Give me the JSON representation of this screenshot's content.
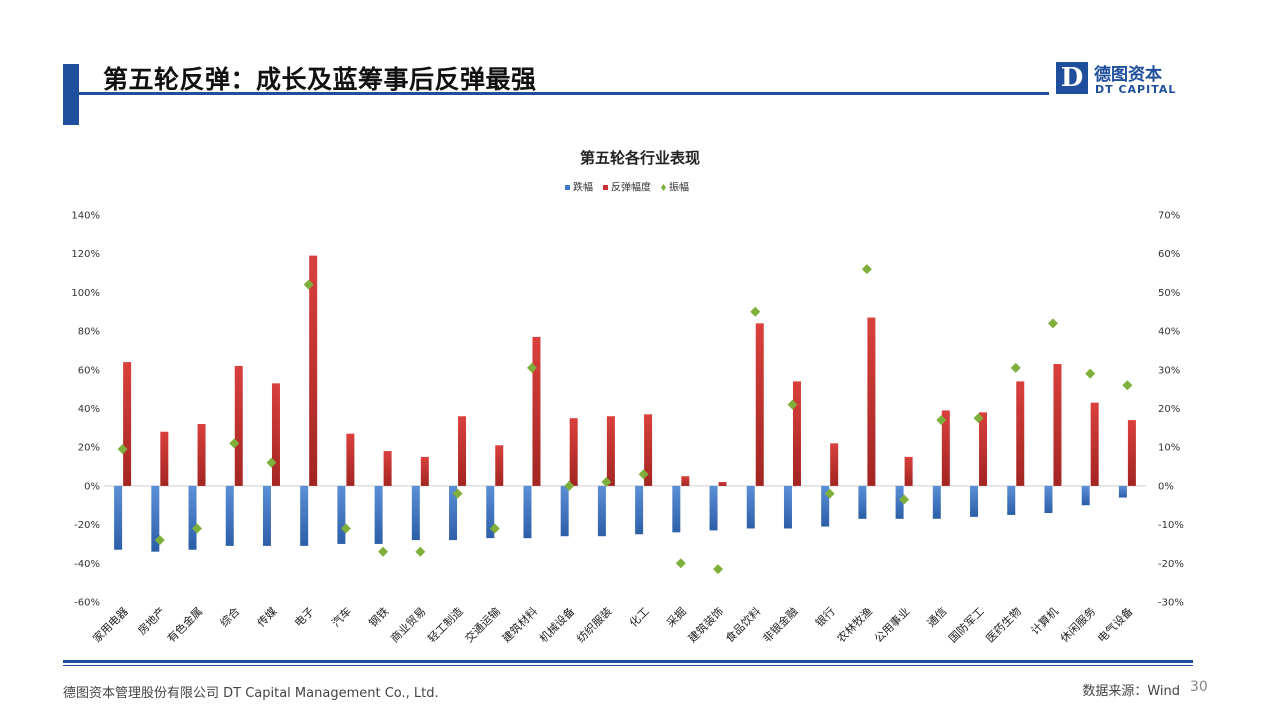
{
  "header": {
    "title": "第五轮反弹：成长及蓝筹事后反弹最强"
  },
  "logo": {
    "mark": "D",
    "name_cn": "德图资本",
    "name_en": "DT CAPITAL"
  },
  "footer": {
    "company": "德图资本管理股份有限公司  DT Capital Management Co., Ltd.",
    "source": "数据来源：Wind",
    "page": "30"
  },
  "colors": {
    "brand": "#1e4e9c",
    "fall": "#3f78c7",
    "rebound": "#c8312f",
    "amplitude": "#7faf3b"
  },
  "chart_data": {
    "type": "bar",
    "title": "第五轮各行业表现",
    "legend": [
      "跌幅",
      "反弹幅度",
      "振幅"
    ],
    "legend_position": "top",
    "categories": [
      "家用电器",
      "房地产",
      "有色金属",
      "综合",
      "传媒",
      "电子",
      "汽车",
      "钢铁",
      "商业贸易",
      "轻工制造",
      "交通运输",
      "建筑材料",
      "机械设备",
      "纺织服装",
      "化工",
      "采掘",
      "建筑装饰",
      "食品饮料",
      "非银金融",
      "银行",
      "农林牧渔",
      "公用事业",
      "通信",
      "国防军工",
      "医药生物",
      "计算机",
      "休闲服务",
      "电气设备"
    ],
    "y_left": {
      "ylim": [
        -60,
        140
      ],
      "ticks": [
        "140%",
        "120%",
        "100%",
        "80%",
        "60%",
        "40%",
        "20%",
        "0%",
        "-20%",
        "-40%",
        "-60%"
      ]
    },
    "y_right": {
      "ylim": [
        -30,
        70
      ],
      "ticks": [
        "70%",
        "60%",
        "50%",
        "40%",
        "30%",
        "20%",
        "10%",
        "0%",
        "-10%",
        "-20%",
        "-30%"
      ]
    },
    "series": [
      {
        "name": "跌幅",
        "kind": "bar",
        "axis": "left",
        "values": [
          -33,
          -34,
          -33,
          -31,
          -31,
          -31,
          -30,
          -30,
          -28,
          -28,
          -27,
          -27,
          -26,
          -26,
          -25,
          -24,
          -23,
          -22,
          -22,
          -21,
          -17,
          -17,
          -17,
          -16,
          -15,
          -14,
          -10,
          -6
        ]
      },
      {
        "name": "反弹幅度",
        "kind": "bar",
        "axis": "left",
        "values": [
          64,
          28,
          32,
          62,
          53,
          119,
          27,
          18,
          15,
          36,
          21,
          77,
          35,
          36,
          37,
          5,
          2,
          84,
          54,
          22,
          87,
          15,
          39,
          38,
          54,
          63,
          43,
          34
        ]
      },
      {
        "name": "振幅",
        "kind": "scatter",
        "axis": "right",
        "values": [
          9.5,
          -14,
          -11,
          11,
          6,
          52,
          -11,
          -17,
          -17,
          -2,
          -11,
          30.5,
          0,
          1,
          3,
          -20,
          -21.5,
          45,
          21,
          -2,
          56,
          -3.5,
          17,
          17.5,
          30.5,
          42,
          29,
          26
        ]
      }
    ]
  }
}
